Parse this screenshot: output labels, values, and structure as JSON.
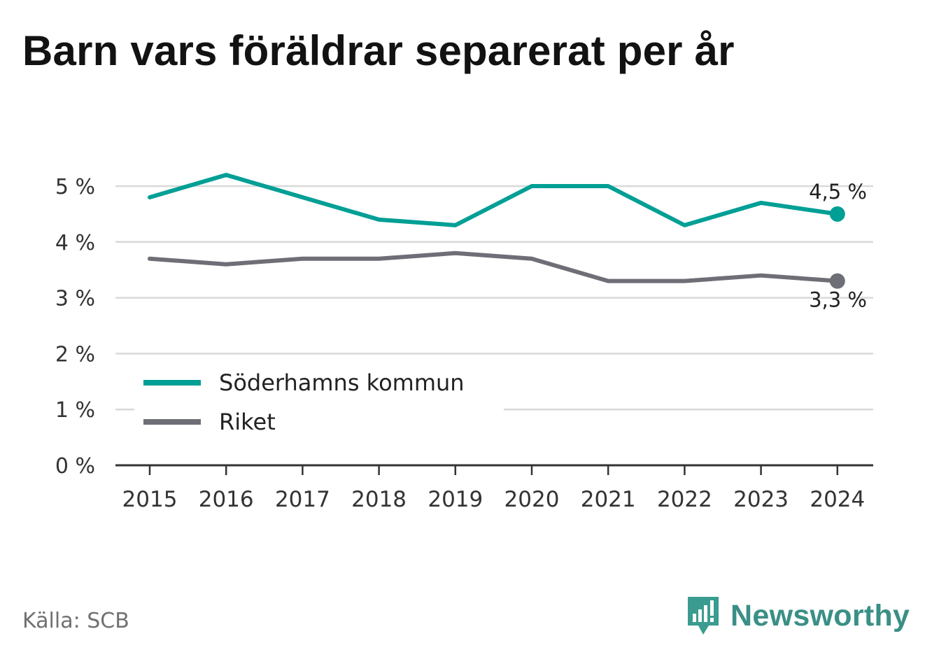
{
  "title": "Barn vars föräldrar separerat per år",
  "source": "Källa: SCB",
  "brand": {
    "name": "Newsworthy",
    "logo_icon": "bar-chart-speech-bubble-icon"
  },
  "colors": {
    "series1": "#009f95",
    "series2": "#6e6e76",
    "grid": "#d9d9d9",
    "axis": "#333333",
    "brand": "#3a8f86"
  },
  "chart_data": {
    "type": "line",
    "x": [
      "2015",
      "2016",
      "2017",
      "2018",
      "2019",
      "2020",
      "2021",
      "2022",
      "2023",
      "2024"
    ],
    "ylim": [
      0,
      5.2
    ],
    "yticks": [
      "0 %",
      "1 %",
      "2 %",
      "3 %",
      "4 %",
      "5 %"
    ],
    "grid": true,
    "legend_position": "bottom-left",
    "series": [
      {
        "name": "Söderhamns kommun",
        "values": [
          4.8,
          5.2,
          4.8,
          4.4,
          4.3,
          5.0,
          5.0,
          4.3,
          4.7,
          4.5
        ],
        "end_label": "4,5 %"
      },
      {
        "name": "Riket",
        "values": [
          3.7,
          3.6,
          3.7,
          3.7,
          3.8,
          3.7,
          3.3,
          3.3,
          3.4,
          3.3
        ],
        "end_label": "3,3 %"
      }
    ]
  }
}
